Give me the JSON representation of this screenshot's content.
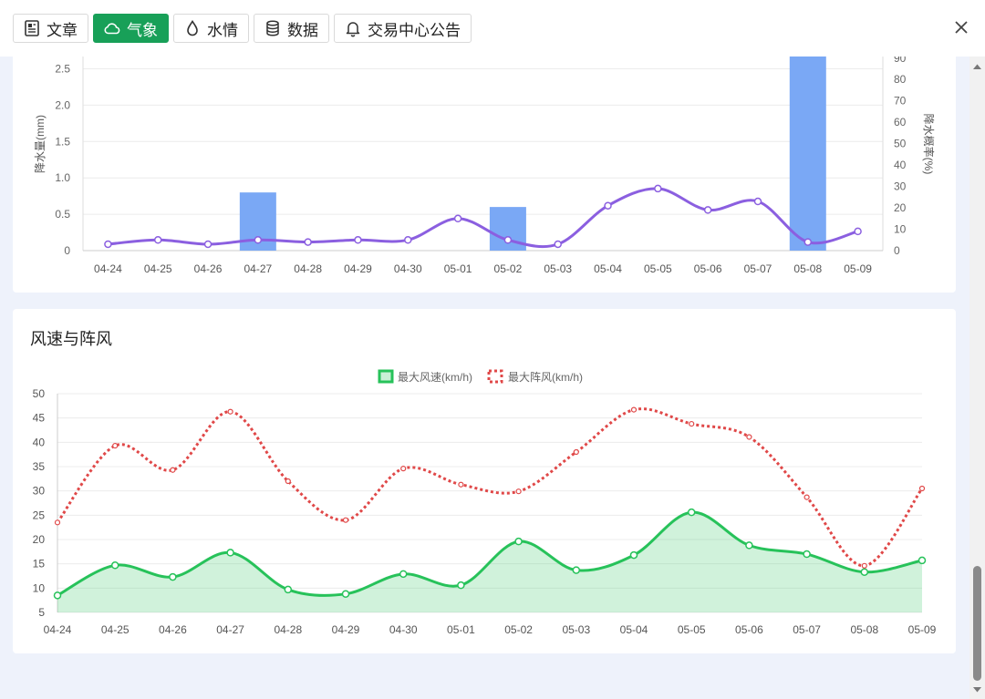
{
  "tabs": [
    {
      "label": "文章",
      "icon": "document-icon",
      "active": false
    },
    {
      "label": "气象",
      "icon": "cloud-icon",
      "active": true
    },
    {
      "label": "水情",
      "icon": "water-drop-icon",
      "active": false
    },
    {
      "label": "数据",
      "icon": "database-icon",
      "active": false
    },
    {
      "label": "交易中心公告",
      "icon": "bell-icon",
      "active": false
    }
  ],
  "colors": {
    "accent": "#18a058",
    "precip_bar": "#7aa8f5",
    "prob_line": "#8b5fe0",
    "wind_line": "#27c25a",
    "gust_line": "#e04848"
  },
  "precip": {
    "chart_data": {
      "type": "bar",
      "categories": [
        "04-24",
        "04-25",
        "04-26",
        "04-27",
        "04-28",
        "04-29",
        "04-30",
        "05-01",
        "05-02",
        "05-03",
        "05-04",
        "05-05",
        "05-06",
        "05-07",
        "05-08",
        "05-09"
      ],
      "series": [
        {
          "axis": "left",
          "type": "bar",
          "values": [
            0,
            0,
            0,
            0.8,
            0,
            0,
            0,
            0,
            0.6,
            0,
            0,
            0,
            0,
            0,
            2.7,
            0
          ]
        },
        {
          "axis": "right",
          "type": "line",
          "values": [
            3,
            5,
            3,
            5,
            4,
            5,
            5,
            15,
            5,
            3,
            21,
            29,
            19,
            23,
            4,
            9
          ]
        }
      ],
      "ylabel": "降水量(mm)",
      "ylabel_right": "降水概率(%)",
      "ylim": [
        0,
        2.7
      ],
      "ylim_right": [
        0,
        90
      ],
      "yticks": [
        "0",
        "0.5",
        "1.0",
        "1.5",
        "2.0",
        "2.5"
      ],
      "yticks_right": [
        "0",
        "10",
        "20",
        "30",
        "40",
        "50",
        "60",
        "70",
        "80",
        "90"
      ],
      "grid": true
    }
  },
  "wind": {
    "title": "风速与阵风",
    "chart_data": {
      "type": "area",
      "categories": [
        "04-24",
        "04-25",
        "04-26",
        "04-27",
        "04-28",
        "04-29",
        "04-30",
        "05-01",
        "05-02",
        "05-03",
        "05-04",
        "05-05",
        "05-06",
        "05-07",
        "05-08",
        "05-09"
      ],
      "series": [
        {
          "name": "最大风速(km/h)",
          "type": "area",
          "values": [
            8.5,
            14.7,
            12.3,
            17.3,
            9.7,
            8.8,
            12.9,
            10.6,
            19.6,
            13.7,
            16.8,
            25.6,
            18.8,
            17.0,
            13.3,
            15.7
          ]
        },
        {
          "name": "最大阵风(km/h)",
          "type": "line",
          "dashed": true,
          "values": [
            23.5,
            39.3,
            34.3,
            46.3,
            32.0,
            24.0,
            34.6,
            31.3,
            29.9,
            38.0,
            46.7,
            43.8,
            41.1,
            28.7,
            14.6,
            30.5
          ]
        }
      ],
      "ylim": [
        5,
        50
      ],
      "yticks": [
        "5",
        "10",
        "15",
        "20",
        "25",
        "30",
        "35",
        "40",
        "45",
        "50"
      ],
      "legend": "top-center",
      "grid": true
    }
  }
}
